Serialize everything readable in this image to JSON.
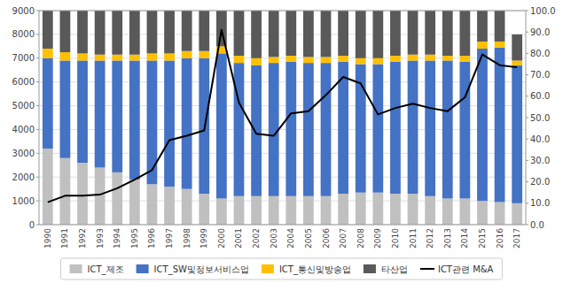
{
  "chart_data": {
    "type": "bar",
    "stacked": true,
    "grid": true,
    "legend": "bottom",
    "categories": [
      "1990",
      "1991",
      "1992",
      "1993",
      "1994",
      "1995",
      "1996",
      "1997",
      "1998",
      "1999",
      "2000",
      "2001",
      "2002",
      "2003",
      "2004",
      "2005",
      "2006",
      "2007",
      "2008",
      "2009",
      "2010",
      "2011",
      "2012",
      "2013",
      "2014",
      "2015",
      "2016",
      "2017"
    ],
    "series": [
      {
        "name": "ICT_제조",
        "color": "#c0c0c0",
        "values": [
          3200,
          2800,
          2600,
          2400,
          2200,
          1900,
          1700,
          1600,
          1500,
          1300,
          1100,
          1200,
          1200,
          1200,
          1200,
          1200,
          1200,
          1300,
          1350,
          1350,
          1300,
          1300,
          1200,
          1100,
          1100,
          1000,
          950,
          900
        ]
      },
      {
        "name": "ICT_SW및정보서비스업",
        "color": "#4472c4",
        "values": [
          3800,
          4100,
          4300,
          4500,
          4700,
          5000,
          5200,
          5300,
          5500,
          5700,
          6100,
          5600,
          5500,
          5600,
          5650,
          5600,
          5600,
          5550,
          5400,
          5400,
          5550,
          5600,
          5700,
          5800,
          5750,
          6400,
          6500,
          5800
        ]
      },
      {
        "name": "ICT_통신및방송업",
        "color": "#ffc000",
        "values": [
          400,
          350,
          300,
          250,
          250,
          250,
          300,
          300,
          300,
          300,
          300,
          300,
          300,
          250,
          250,
          250,
          250,
          250,
          250,
          250,
          250,
          250,
          250,
          200,
          250,
          300,
          250,
          200
        ]
      },
      {
        "name": "타산업",
        "color": "#595959",
        "values": [
          1600,
          1750,
          1800,
          1850,
          1850,
          1850,
          1800,
          1800,
          1700,
          1700,
          1500,
          1900,
          2000,
          1950,
          1900,
          1950,
          1950,
          1900,
          2000,
          2000,
          1900,
          1850,
          1850,
          1900,
          1900,
          1300,
          1300,
          1100
        ]
      },
      {
        "name": "ICT관련 M&A",
        "type": "line",
        "axis": "y2",
        "color": "#000000",
        "values": [
          10.5,
          13.5,
          13.5,
          14.0,
          17.0,
          21.0,
          25.5,
          39.5,
          41.5,
          44.0,
          91.0,
          57.0,
          42.5,
          41.5,
          52.0,
          53.0,
          60.5,
          69.0,
          66.0,
          51.5,
          54.5,
          56.5,
          54.5,
          53.0,
          59.5,
          79.5,
          74.5,
          73.5
        ]
      }
    ],
    "ylim": [
      0,
      9000
    ],
    "yticks": [
      0,
      1000,
      2000,
      3000,
      4000,
      5000,
      6000,
      7000,
      8000,
      9000
    ],
    "y2lim": [
      0,
      100
    ],
    "y2ticks": [
      {
        "value": 0,
        "label": "0.0"
      },
      {
        "value": 10,
        "label": "10.0"
      },
      {
        "value": 20,
        "label": "20.0"
      },
      {
        "value": 30,
        "label": "30.0"
      },
      {
        "value": 40,
        "label": "40.0"
      },
      {
        "value": 50,
        "label": "50.0"
      },
      {
        "value": 60,
        "label": "60.0"
      },
      {
        "value": 70,
        "label": "70.0"
      },
      {
        "value": 80,
        "label": "80.0"
      },
      {
        "value": 90,
        "label": "90.0"
      },
      {
        "value": 100,
        "label": "100.0"
      }
    ]
  }
}
